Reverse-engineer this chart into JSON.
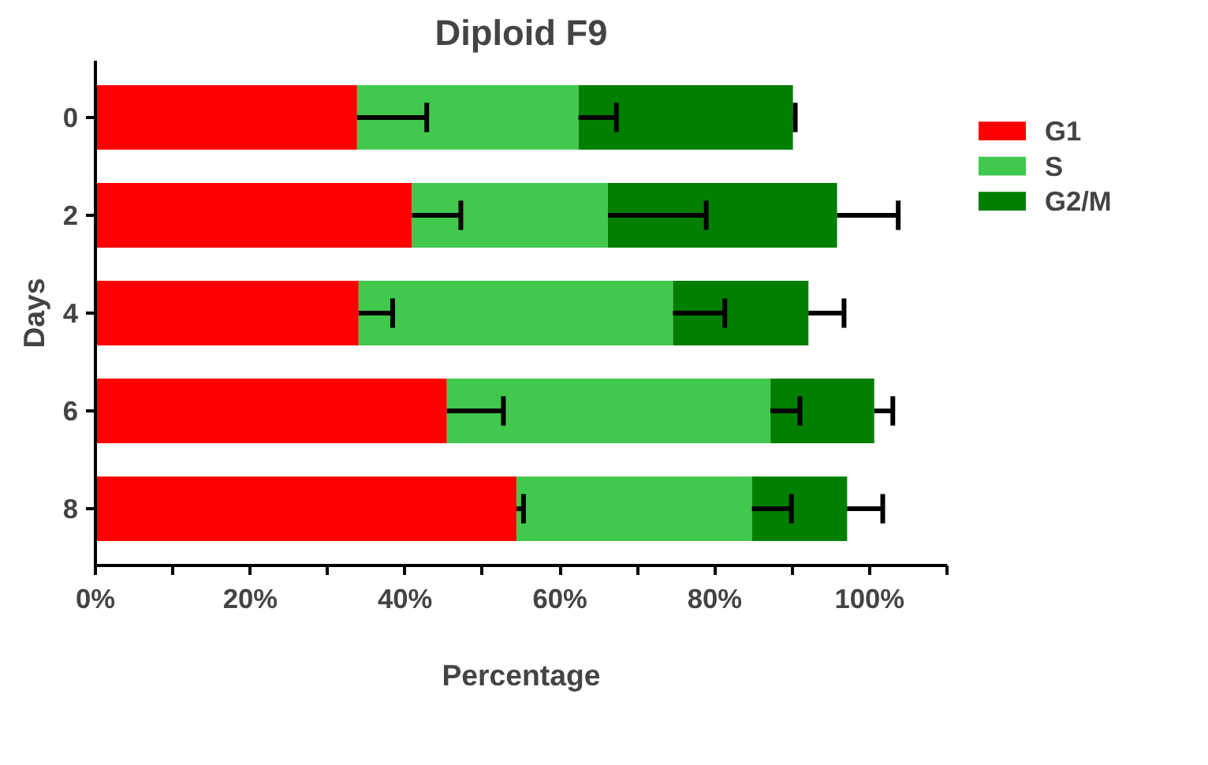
{
  "chart_data": {
    "type": "bar",
    "orientation": "horizontal",
    "stacked": true,
    "title": "Diploid F9",
    "xlabel": "Percentage",
    "ylabel": "Days",
    "categories": [
      "0",
      "2",
      "4",
      "6",
      "8"
    ],
    "series": [
      {
        "name": "G1",
        "color": "#ff0000",
        "values": [
          33.8,
          40.9,
          34.0,
          45.4,
          54.4
        ],
        "errors": [
          [
            33.8,
            42.8
          ],
          [
            40.9,
            47.2
          ],
          [
            34.0,
            38.4
          ],
          [
            45.4,
            52.7
          ],
          [
            54.4,
            55.3
          ]
        ]
      },
      {
        "name": "S",
        "color": "#40c94d",
        "values": [
          28.6,
          25.3,
          40.6,
          41.8,
          30.4
        ],
        "errors": [
          [
            62.4,
            67.3
          ],
          [
            66.2,
            78.9
          ],
          [
            74.6,
            81.3
          ],
          [
            87.2,
            91.0
          ],
          [
            84.8,
            89.9
          ]
        ]
      },
      {
        "name": "G2/M",
        "color": "#007f00",
        "values": [
          27.7,
          29.6,
          17.5,
          13.4,
          12.3
        ],
        "errors": [
          [
            90.1,
            90.4
          ],
          [
            95.8,
            103.7
          ],
          [
            92.1,
            96.7
          ],
          [
            100.6,
            103.0
          ],
          [
            97.1,
            101.7
          ]
        ]
      }
    ],
    "xlim": [
      0,
      110
    ],
    "xticks": [
      {
        "value": 0,
        "label": "0%"
      },
      {
        "value": 10,
        "label": null
      },
      {
        "value": 20,
        "label": "20%"
      },
      {
        "value": 30,
        "label": null
      },
      {
        "value": 40,
        "label": "40%"
      },
      {
        "value": 50,
        "label": null
      },
      {
        "value": 60,
        "label": "60%"
      },
      {
        "value": 70,
        "label": null
      },
      {
        "value": 80,
        "label": "80%"
      },
      {
        "value": 90,
        "label": null
      },
      {
        "value": 100,
        "label": "100%"
      },
      {
        "value": 110,
        "label": null
      }
    ],
    "grid": false,
    "legend": "right"
  }
}
